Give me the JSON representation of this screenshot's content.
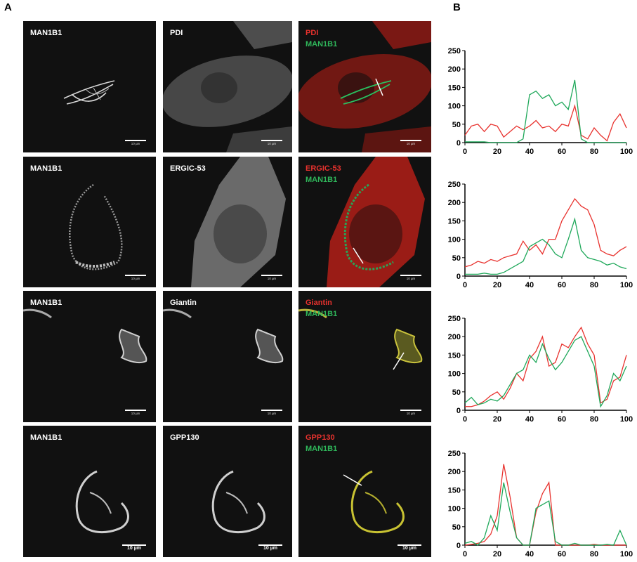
{
  "figure": {
    "panel_a": "A",
    "panel_b": "B"
  },
  "colors": {
    "red": "#e8322e",
    "green": "#1fa85a",
    "background": "#111111"
  },
  "rows": [
    {
      "marker": "MAN1B1",
      "partner": "PDI",
      "merge_red": "PDI",
      "merge_green": "MAN1B1",
      "scale": "10 µm"
    },
    {
      "marker": "MAN1B1",
      "partner": "ERGIC-53",
      "merge_red": "ERGIC-53",
      "merge_green": "MAN1B1",
      "scale": "10 µm"
    },
    {
      "marker": "MAN1B1",
      "partner": "Giantin",
      "merge_red": "Giantin",
      "merge_green": "MAN1B1",
      "scale": "10 µm"
    },
    {
      "marker": "MAN1B1",
      "partner": "GPP130",
      "merge_red": "GPP130",
      "merge_green": "MAN1B1",
      "scale": "10 µm"
    }
  ],
  "chart_data": [
    {
      "type": "line",
      "x": [
        0,
        4,
        8,
        12,
        16,
        20,
        24,
        28,
        32,
        36,
        40,
        44,
        48,
        52,
        56,
        60,
        64,
        68,
        72,
        76,
        80,
        84,
        88,
        92,
        96,
        100
      ],
      "series": [
        {
          "color": "#e8322e",
          "values": [
            20,
            45,
            50,
            30,
            50,
            45,
            15,
            30,
            45,
            35,
            45,
            60,
            40,
            45,
            30,
            50,
            45,
            100,
            20,
            10,
            40,
            20,
            5,
            55,
            78,
            40
          ]
        },
        {
          "color": "#1fa85a",
          "values": [
            2,
            2,
            2,
            2,
            0,
            0,
            0,
            0,
            0,
            10,
            130,
            140,
            120,
            130,
            100,
            110,
            90,
            170,
            10,
            0,
            0,
            0,
            0,
            0,
            0,
            0
          ]
        }
      ],
      "xlim": [
        0,
        100
      ],
      "ylim": [
        0,
        250
      ],
      "xticks": [
        0,
        20,
        40,
        60,
        80,
        100
      ],
      "yticks": [
        0,
        50,
        100,
        150,
        200,
        250
      ]
    },
    {
      "type": "line",
      "x": [
        0,
        4,
        8,
        12,
        16,
        20,
        24,
        28,
        32,
        36,
        40,
        44,
        48,
        52,
        56,
        60,
        64,
        68,
        72,
        76,
        80,
        84,
        88,
        92,
        96,
        100
      ],
      "series": [
        {
          "color": "#e8322e",
          "values": [
            25,
            30,
            40,
            35,
            45,
            40,
            50,
            55,
            60,
            95,
            70,
            85,
            60,
            100,
            100,
            150,
            180,
            210,
            190,
            180,
            140,
            70,
            60,
            55,
            70,
            80
          ]
        },
        {
          "color": "#1fa85a",
          "values": [
            5,
            5,
            5,
            8,
            5,
            5,
            10,
            20,
            30,
            40,
            80,
            90,
            100,
            85,
            60,
            50,
            100,
            155,
            70,
            50,
            45,
            40,
            30,
            35,
            25,
            20
          ]
        }
      ],
      "xlim": [
        0,
        100
      ],
      "ylim": [
        0,
        250
      ],
      "xticks": [
        0,
        20,
        40,
        60,
        80,
        100
      ],
      "yticks": [
        0,
        50,
        100,
        150,
        200,
        250
      ]
    },
    {
      "type": "line",
      "x": [
        0,
        4,
        8,
        12,
        16,
        20,
        24,
        28,
        32,
        36,
        40,
        44,
        48,
        52,
        56,
        60,
        64,
        68,
        72,
        76,
        80,
        84,
        88,
        92,
        96,
        100
      ],
      "series": [
        {
          "color": "#e8322e",
          "values": [
            10,
            10,
            15,
            25,
            40,
            50,
            30,
            60,
            100,
            80,
            140,
            160,
            200,
            120,
            130,
            180,
            170,
            200,
            225,
            180,
            150,
            20,
            30,
            80,
            90,
            150
          ]
        },
        {
          "color": "#1fa85a",
          "values": [
            20,
            35,
            15,
            20,
            30,
            25,
            40,
            70,
            100,
            110,
            150,
            130,
            180,
            140,
            110,
            130,
            160,
            190,
            200,
            160,
            120,
            10,
            40,
            100,
            80,
            120
          ]
        }
      ],
      "xlim": [
        0,
        100
      ],
      "ylim": [
        0,
        250
      ],
      "xticks": [
        0,
        20,
        40,
        60,
        80,
        100
      ],
      "yticks": [
        0,
        50,
        100,
        150,
        200,
        250
      ]
    },
    {
      "type": "line",
      "x": [
        0,
        4,
        8,
        12,
        16,
        20,
        24,
        28,
        32,
        36,
        40,
        44,
        48,
        52,
        56,
        60,
        64,
        68,
        72,
        76,
        80,
        84,
        88,
        92,
        96,
        100
      ],
      "series": [
        {
          "color": "#e8322e",
          "values": [
            0,
            2,
            5,
            10,
            30,
            80,
            220,
            130,
            20,
            0,
            0,
            90,
            140,
            170,
            0,
            0,
            0,
            0,
            0,
            0,
            2,
            0,
            0,
            0,
            0,
            0
          ]
        },
        {
          "color": "#1fa85a",
          "values": [
            5,
            10,
            0,
            20,
            80,
            40,
            170,
            90,
            20,
            0,
            0,
            100,
            110,
            120,
            10,
            0,
            0,
            5,
            0,
            0,
            0,
            0,
            2,
            0,
            40,
            0
          ]
        }
      ],
      "xlim": [
        0,
        100
      ],
      "ylim": [
        0,
        250
      ],
      "xticks": [
        0,
        20,
        40,
        60,
        80,
        100
      ],
      "yticks": [
        0,
        50,
        100,
        150,
        200,
        250
      ]
    }
  ]
}
